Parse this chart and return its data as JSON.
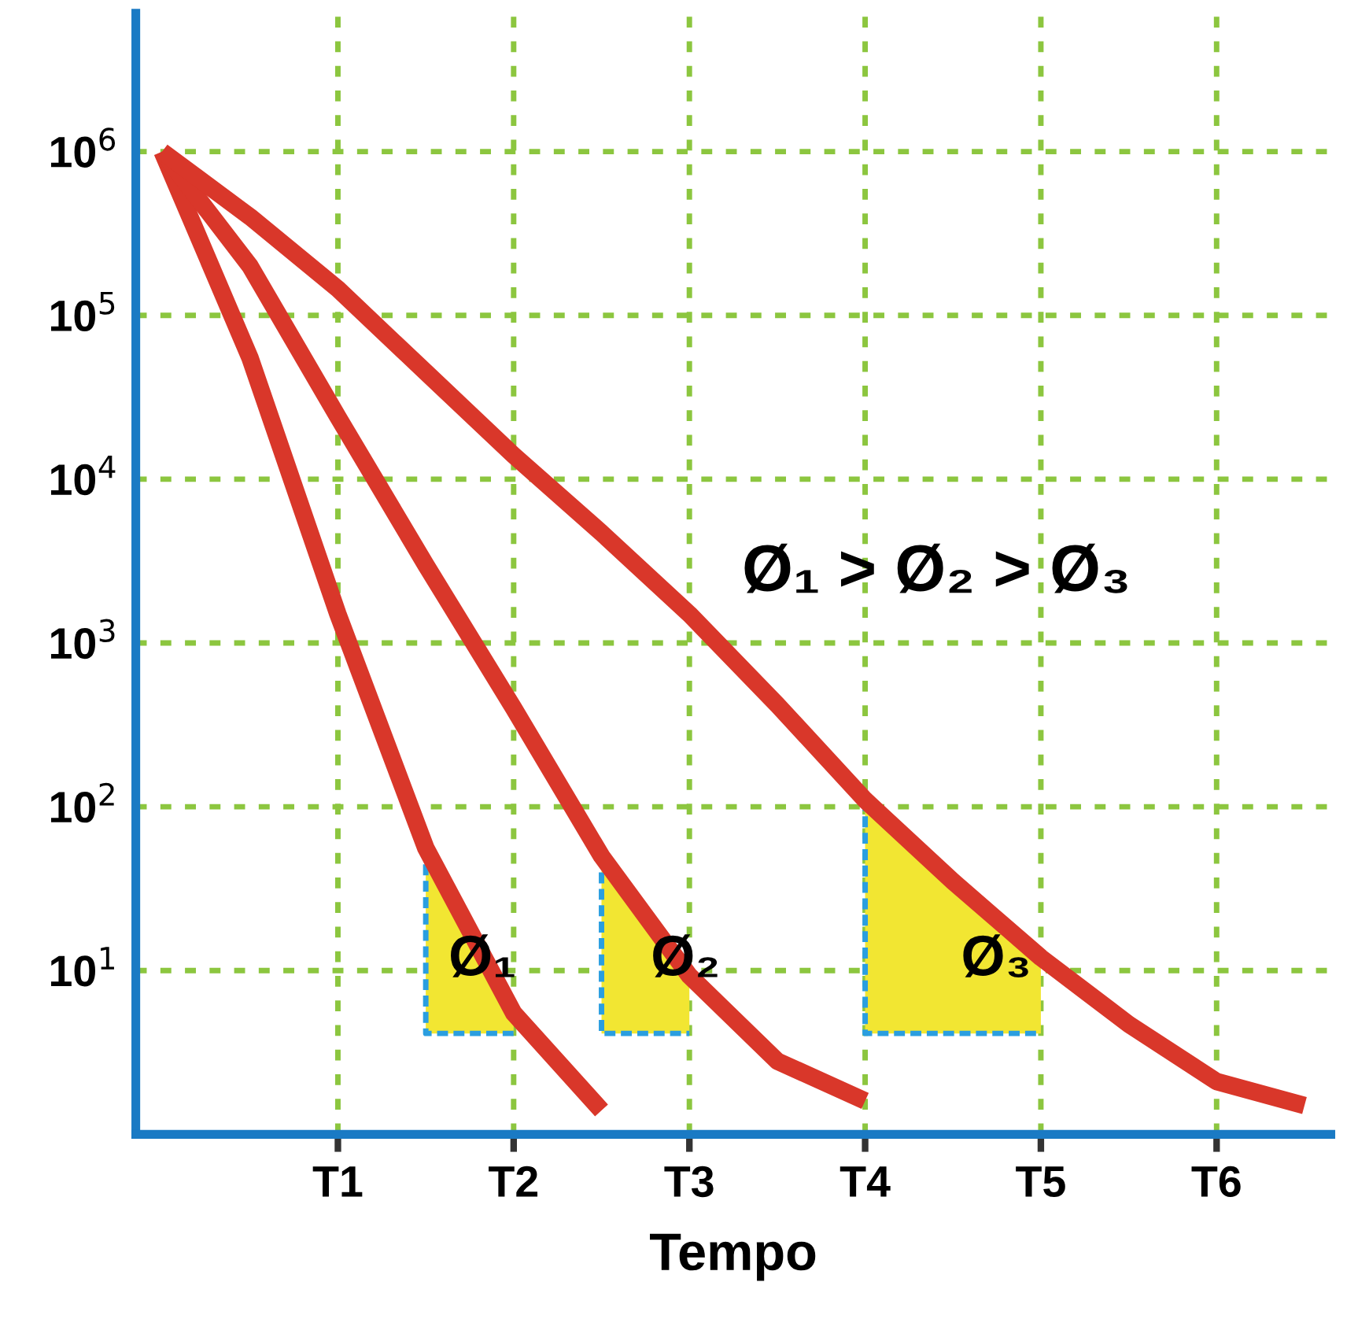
{
  "chart_data": {
    "type": "line",
    "xlabel": "Tempo",
    "log": "y",
    "grid": true,
    "line_style": "solid",
    "marker": "none",
    "ylim": [
      1,
      7000000
    ],
    "categories": [
      null,
      null,
      "T1",
      null,
      "T2",
      null,
      "T3",
      null,
      "T4",
      null,
      "T5",
      null,
      "T6",
      null
    ],
    "yticks": [
      {
        "value": 10,
        "label": "10$^{1}$"
      },
      {
        "value": 100,
        "label": "10$^{2}$"
      },
      {
        "value": 1000,
        "label": "10$^{3}$"
      },
      {
        "value": 10000,
        "label": "10$^{4}$"
      },
      {
        "value": 100000,
        "label": "10$^{5}$"
      },
      {
        "value": 1000000,
        "label": "10$^{6}$"
      }
    ],
    "series": [
      {
        "color": "#d9372a",
        "values": [
          1000000,
          55000,
          1500,
          56,
          5.5,
          1.4,
          null,
          null,
          null,
          null,
          null,
          null,
          null,
          null
        ]
      },
      {
        "color": "#d9372a",
        "values": [
          1000000,
          200000,
          24000,
          3000,
          400,
          50,
          9.3,
          2.8,
          1.6,
          null,
          null,
          null,
          null,
          null
        ]
      },
      {
        "color": "#d9372a",
        "values": [
          1000000,
          400000,
          145000,
          45000,
          14000,
          4700,
          1500,
          420,
          110,
          35,
          12,
          4.7,
          2.1,
          1.5
        ]
      },
      {
        "type": "area",
        "color": "#f2e632",
        "values": [
          null,
          null,
          null,
          56,
          5.5,
          50,
          9.3,
          null,
          110,
          35,
          12,
          null,
          null,
          null
        ]
      }
    ],
    "annotations": [
      "Ø₁ > Ø₂ > Ø₃",
      "Ø₁",
      "Ø₂",
      "Ø₃"
    ]
  }
}
